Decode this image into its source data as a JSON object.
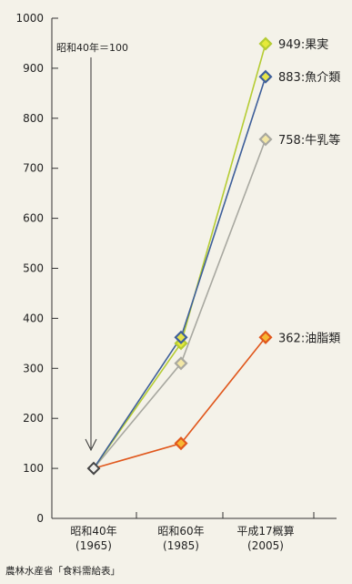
{
  "chart_data": {
    "type": "line",
    "title": "",
    "xlabel": "",
    "ylabel": "",
    "ylim": [
      0,
      1000
    ],
    "yticks": [
      0,
      100,
      200,
      300,
      400,
      500,
      600,
      700,
      800,
      900,
      1000
    ],
    "categories": [
      {
        "line1": "昭和40年",
        "line2": "(1965)"
      },
      {
        "line1": "昭和60年",
        "line2": "(1985)"
      },
      {
        "line1": "平成17概算",
        "line2": "(2005)"
      }
    ],
    "series": [
      {
        "name": "油脂類",
        "values": [
          100,
          150,
          362
        ],
        "label": "362:油脂類",
        "color": "#e0571c",
        "marker_fill": "#f7b733"
      },
      {
        "name": "牛乳等",
        "values": [
          100,
          310,
          758
        ],
        "label": "758:牛乳等",
        "color": "#a8a8a0",
        "marker_fill": "#f3e7a5"
      },
      {
        "name": "果実",
        "values": [
          100,
          350,
          949
        ],
        "label": "949:果実",
        "color": "#b5cc33",
        "marker_fill": "#e6ea3a"
      },
      {
        "name": "魚介類",
        "values": [
          100,
          362,
          883
        ],
        "label": "883:魚介類",
        "color": "#3e5f9a",
        "marker_fill": "#e6e44a"
      }
    ],
    "base_marker_color": "#444444",
    "annotation": "昭和40年＝100",
    "source": "農林水産省「食料需給表」",
    "grid": false,
    "legend": "end-of-line labels"
  }
}
